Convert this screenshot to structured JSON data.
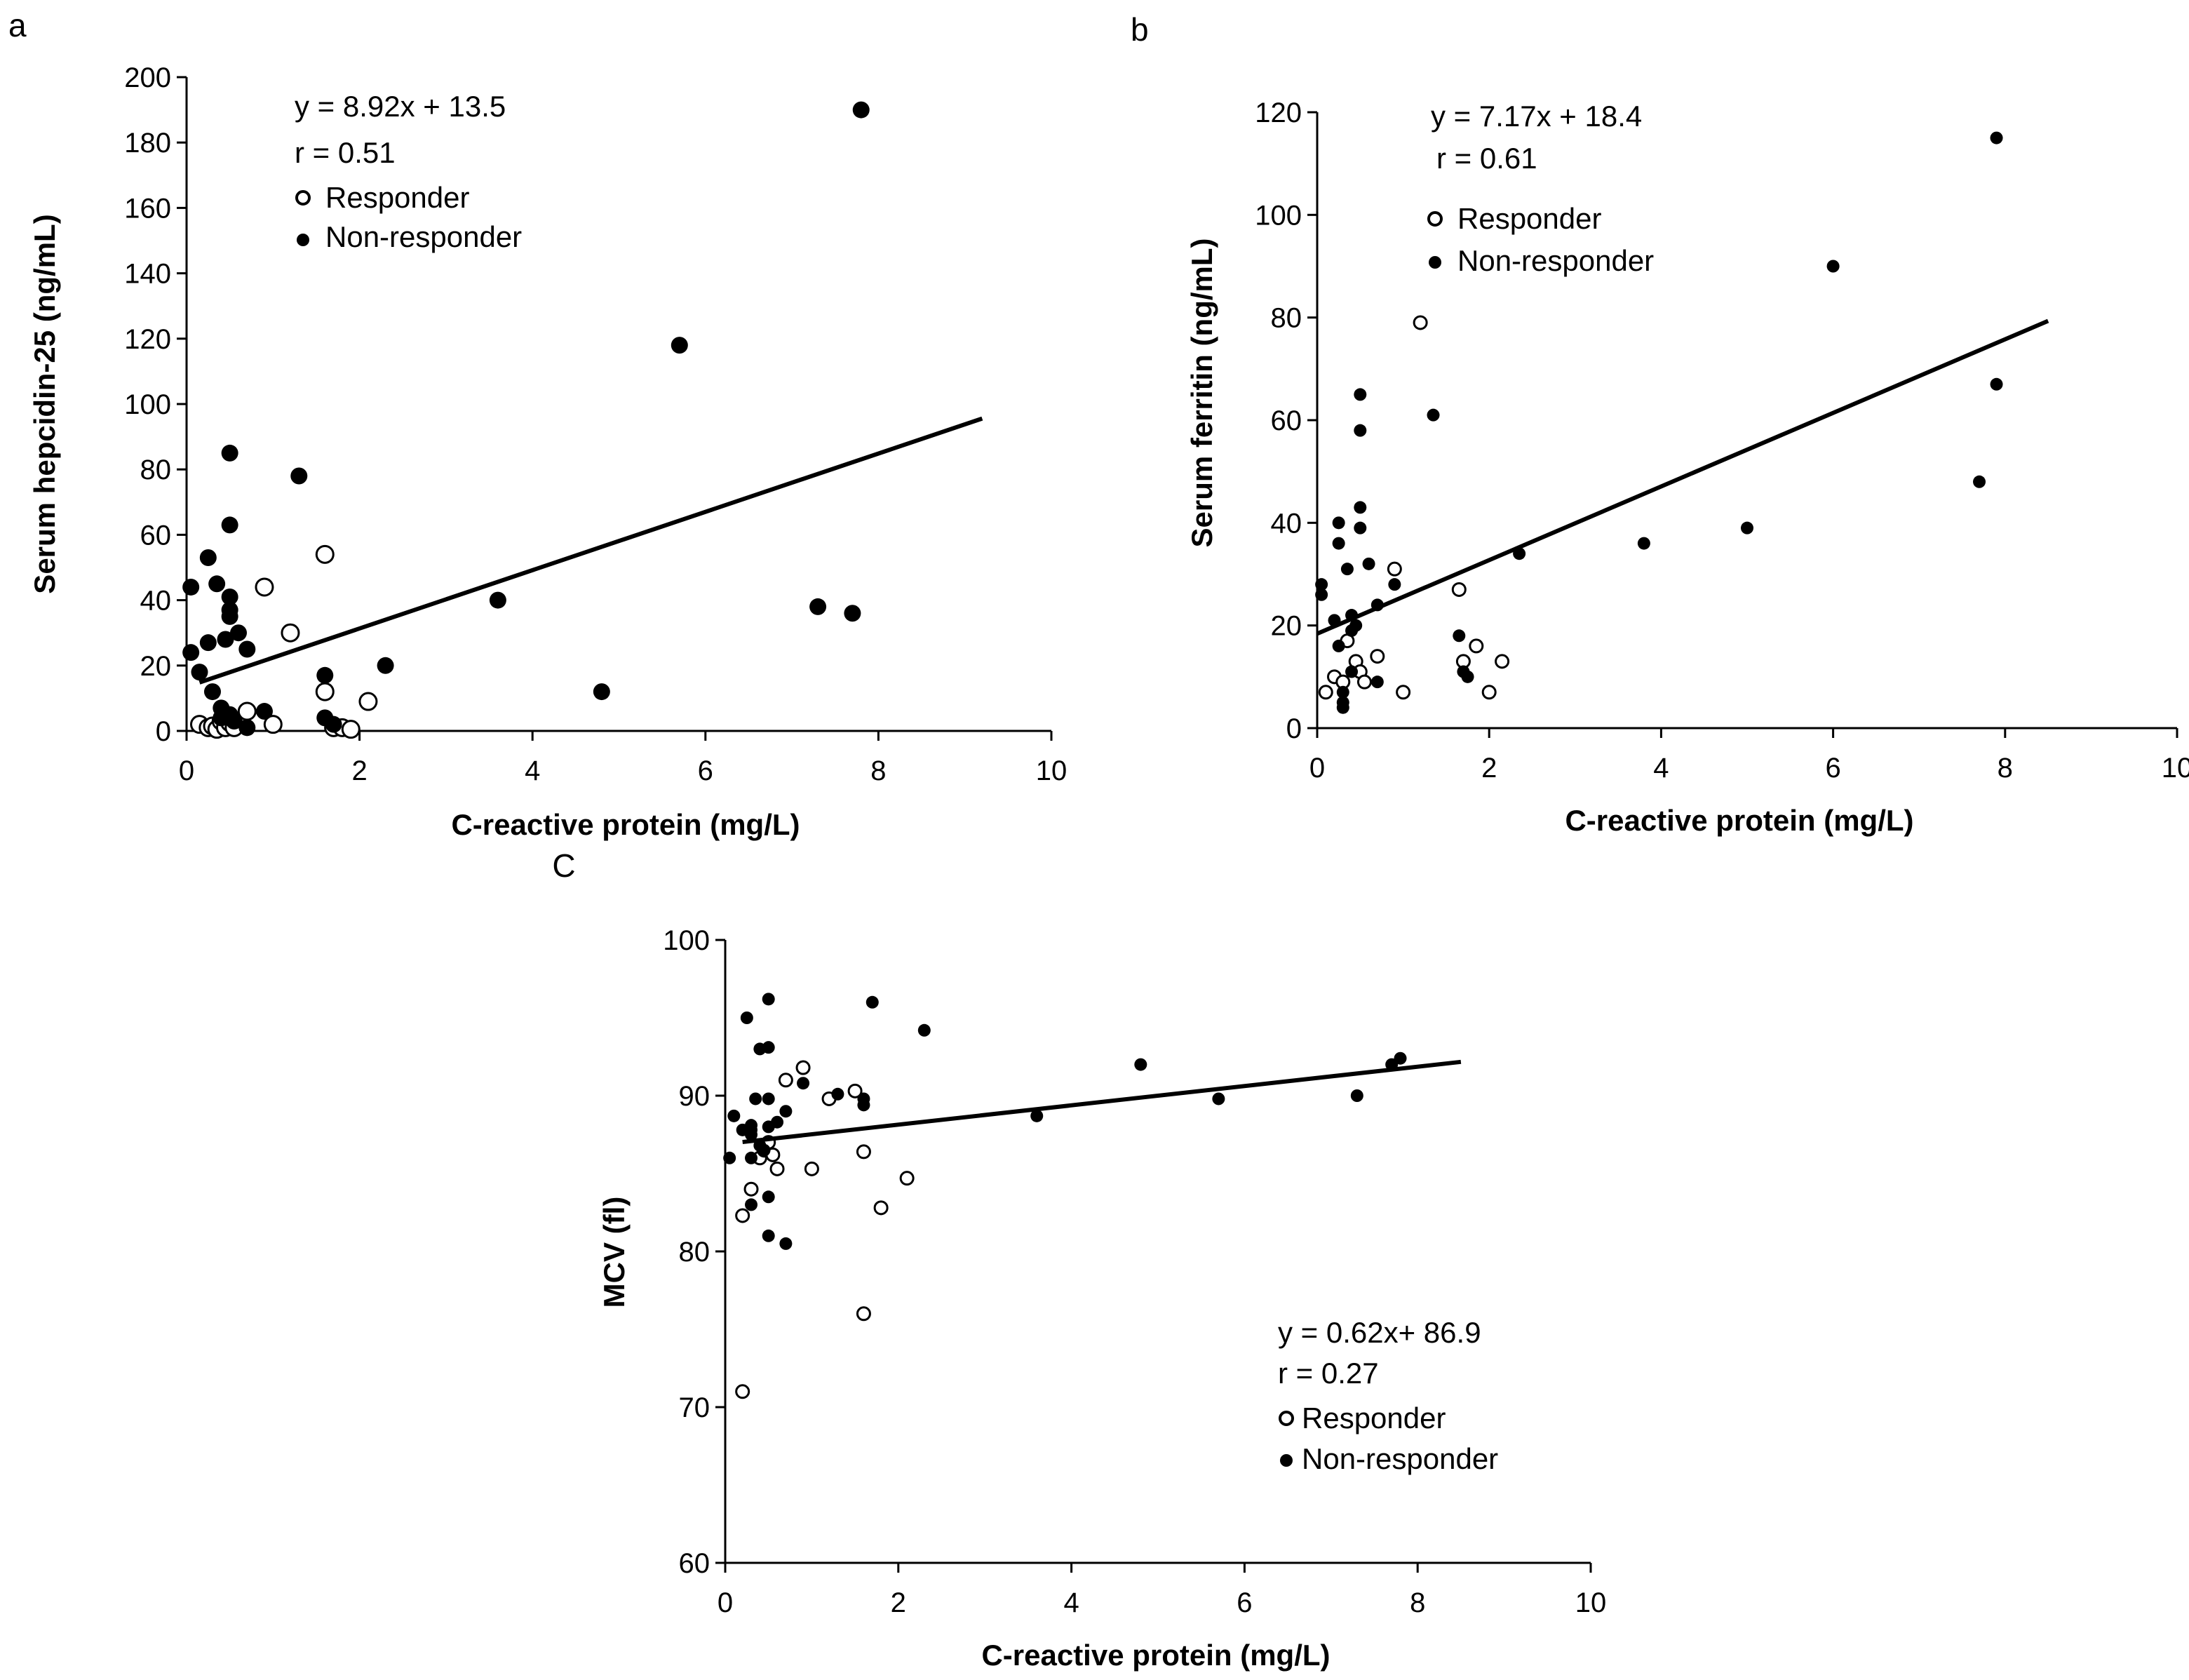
{
  "figure": {
    "panels": [
      {
        "id": "a",
        "label": "a"
      },
      {
        "id": "b",
        "label": "b"
      },
      {
        "id": "c",
        "label": "C"
      }
    ]
  },
  "chart_data": [
    {
      "id": "a",
      "type": "scatter",
      "panel_label": "a",
      "xlabel": "C-reactive protein (mg/L)",
      "ylabel": "Serum hepcidin-25 (ng/mL)",
      "xlim": [
        0,
        10
      ],
      "ylim": [
        0,
        200
      ],
      "xticks": [
        "0",
        "2",
        "4",
        "6",
        "8",
        "10"
      ],
      "yticks": [
        "0",
        "20",
        "40",
        "60",
        "80",
        "100",
        "120",
        "140",
        "160",
        "180",
        "200"
      ],
      "equation": "y = 8.92x + 13.5",
      "r_text": "r = 0.51",
      "legend": [
        "Responder",
        "Non-responder"
      ],
      "trendline": {
        "slope": 8.92,
        "intercept": 13.5,
        "x_from": 0.15,
        "x_to": 9.2
      },
      "series": [
        {
          "name": "Responder",
          "filled": false,
          "points": [
            [
              0.15,
              2
            ],
            [
              0.25,
              1
            ],
            [
              0.3,
              1.5
            ],
            [
              0.35,
              0.5
            ],
            [
              0.4,
              3
            ],
            [
              0.45,
              1
            ],
            [
              0.5,
              2.5
            ],
            [
              0.55,
              1
            ],
            [
              0.7,
              6
            ],
            [
              0.9,
              44
            ],
            [
              1.0,
              2
            ],
            [
              1.2,
              30
            ],
            [
              1.6,
              54
            ],
            [
              1.6,
              12
            ],
            [
              1.7,
              1
            ],
            [
              1.8,
              1
            ],
            [
              1.9,
              0.5
            ],
            [
              2.1,
              9
            ]
          ]
        },
        {
          "name": "Non-responder",
          "filled": true,
          "points": [
            [
              0.05,
              44
            ],
            [
              0.05,
              24
            ],
            [
              0.15,
              18
            ],
            [
              0.25,
              53
            ],
            [
              0.25,
              27
            ],
            [
              0.3,
              12
            ],
            [
              0.35,
              45
            ],
            [
              0.4,
              7
            ],
            [
              0.4,
              4
            ],
            [
              0.45,
              28
            ],
            [
              0.5,
              85
            ],
            [
              0.5,
              63
            ],
            [
              0.5,
              41
            ],
            [
              0.5,
              37
            ],
            [
              0.5,
              35
            ],
            [
              0.5,
              5
            ],
            [
              0.55,
              3
            ],
            [
              0.6,
              30
            ],
            [
              0.7,
              25
            ],
            [
              0.7,
              1
            ],
            [
              0.9,
              6
            ],
            [
              1.3,
              78
            ],
            [
              1.6,
              17
            ],
            [
              1.6,
              4
            ],
            [
              1.7,
              2
            ],
            [
              2.3,
              20
            ],
            [
              3.6,
              40
            ],
            [
              4.8,
              12
            ],
            [
              5.7,
              118
            ],
            [
              7.3,
              38
            ],
            [
              7.7,
              36
            ],
            [
              7.8,
              190
            ]
          ]
        }
      ]
    },
    {
      "id": "b",
      "type": "scatter",
      "panel_label": "b",
      "xlabel": "C-reactive protein (mg/L)",
      "ylabel": "Serum ferritin (ng/mL)",
      "xlim": [
        0,
        10
      ],
      "ylim": [
        0,
        120
      ],
      "xticks": [
        "0",
        "2",
        "4",
        "6",
        "8",
        "10"
      ],
      "yticks": [
        "0",
        "20",
        "40",
        "60",
        "80",
        "100",
        "120"
      ],
      "equation": "y = 7.17x + 18.4",
      "r_text": "r = 0.61",
      "legend": [
        "Responder",
        "Non-responder"
      ],
      "trendline": {
        "slope": 7.17,
        "intercept": 18.4,
        "x_from": 0,
        "x_to": 8.5
      },
      "series": [
        {
          "name": "Responder",
          "filled": false,
          "points": [
            [
              0.1,
              7
            ],
            [
              0.2,
              10
            ],
            [
              0.3,
              9
            ],
            [
              0.35,
              17
            ],
            [
              0.45,
              13
            ],
            [
              0.5,
              11
            ],
            [
              0.55,
              9
            ],
            [
              0.7,
              14
            ],
            [
              0.9,
              31
            ],
            [
              1.0,
              7
            ],
            [
              1.2,
              79
            ],
            [
              1.65,
              27
            ],
            [
              1.7,
              13
            ],
            [
              1.85,
              16
            ],
            [
              2.0,
              7
            ],
            [
              2.15,
              13
            ]
          ]
        },
        {
          "name": "Non-responder",
          "filled": true,
          "points": [
            [
              0.05,
              28
            ],
            [
              0.05,
              26
            ],
            [
              0.2,
              21
            ],
            [
              0.25,
              40
            ],
            [
              0.25,
              36
            ],
            [
              0.25,
              16
            ],
            [
              0.3,
              7
            ],
            [
              0.3,
              5
            ],
            [
              0.3,
              4
            ],
            [
              0.35,
              31
            ],
            [
              0.4,
              22
            ],
            [
              0.4,
              19
            ],
            [
              0.4,
              11
            ],
            [
              0.45,
              20
            ],
            [
              0.5,
              65
            ],
            [
              0.5,
              58
            ],
            [
              0.5,
              43
            ],
            [
              0.5,
              39
            ],
            [
              0.6,
              32
            ],
            [
              0.7,
              24
            ],
            [
              0.7,
              9
            ],
            [
              0.9,
              28
            ],
            [
              1.35,
              61
            ],
            [
              1.65,
              18
            ],
            [
              1.7,
              11
            ],
            [
              1.75,
              10
            ],
            [
              2.35,
              34
            ],
            [
              3.8,
              36
            ],
            [
              5.0,
              39
            ],
            [
              6.0,
              90
            ],
            [
              7.7,
              48
            ],
            [
              7.9,
              67
            ],
            [
              7.9,
              115
            ]
          ]
        }
      ]
    },
    {
      "id": "c",
      "type": "scatter",
      "panel_label": "C",
      "xlabel": "C-reactive protein (mg/L)",
      "ylabel": "MCV (fl)",
      "xlim": [
        0,
        10
      ],
      "ylim": [
        60,
        100
      ],
      "xticks": [
        "0",
        "2",
        "4",
        "6",
        "8",
        "10"
      ],
      "yticks": [
        "60",
        "70",
        "80",
        "90",
        "100"
      ],
      "equation": "y = 0.62x+ 86.9",
      "r_text": "r = 0.27",
      "legend": [
        "Responder",
        "Non-responder"
      ],
      "trendline": {
        "slope": 0.62,
        "intercept": 86.9,
        "x_from": 0.2,
        "x_to": 8.5
      },
      "series": [
        {
          "name": "Responder",
          "filled": false,
          "points": [
            [
              0.2,
              71
            ],
            [
              0.2,
              82.3
            ],
            [
              0.3,
              84
            ],
            [
              0.4,
              86
            ],
            [
              0.45,
              86.5
            ],
            [
              0.5,
              87
            ],
            [
              0.55,
              86.2
            ],
            [
              0.6,
              85.3
            ],
            [
              0.7,
              91
            ],
            [
              0.9,
              91.8
            ],
            [
              1.0,
              85.3
            ],
            [
              1.2,
              89.8
            ],
            [
              1.5,
              90.3
            ],
            [
              1.6,
              76
            ],
            [
              1.6,
              86.4
            ],
            [
              1.8,
              82.8
            ],
            [
              2.1,
              84.7
            ]
          ]
        },
        {
          "name": "Non-responder",
          "filled": true,
          "points": [
            [
              0.05,
              86
            ],
            [
              0.1,
              88.7
            ],
            [
              0.2,
              87.8
            ],
            [
              0.25,
              95
            ],
            [
              0.3,
              88.1
            ],
            [
              0.3,
              87.8
            ],
            [
              0.3,
              87.5
            ],
            [
              0.3,
              86
            ],
            [
              0.3,
              83
            ],
            [
              0.35,
              89.8
            ],
            [
              0.4,
              93
            ],
            [
              0.4,
              86.8
            ],
            [
              0.45,
              86.5
            ],
            [
              0.5,
              96.2
            ],
            [
              0.5,
              93.1
            ],
            [
              0.5,
              89.8
            ],
            [
              0.5,
              88
            ],
            [
              0.5,
              83.5
            ],
            [
              0.5,
              81
            ],
            [
              0.6,
              88.3
            ],
            [
              0.7,
              89
            ],
            [
              0.7,
              80.5
            ],
            [
              0.9,
              90.8
            ],
            [
              1.3,
              90.1
            ],
            [
              1.6,
              89.4
            ],
            [
              1.6,
              89.8
            ],
            [
              1.7,
              96
            ],
            [
              2.3,
              94.2
            ],
            [
              3.6,
              88.7
            ],
            [
              4.8,
              92
            ],
            [
              5.7,
              89.8
            ],
            [
              7.3,
              90
            ],
            [
              7.7,
              92
            ],
            [
              7.8,
              92.4
            ]
          ]
        }
      ]
    }
  ]
}
